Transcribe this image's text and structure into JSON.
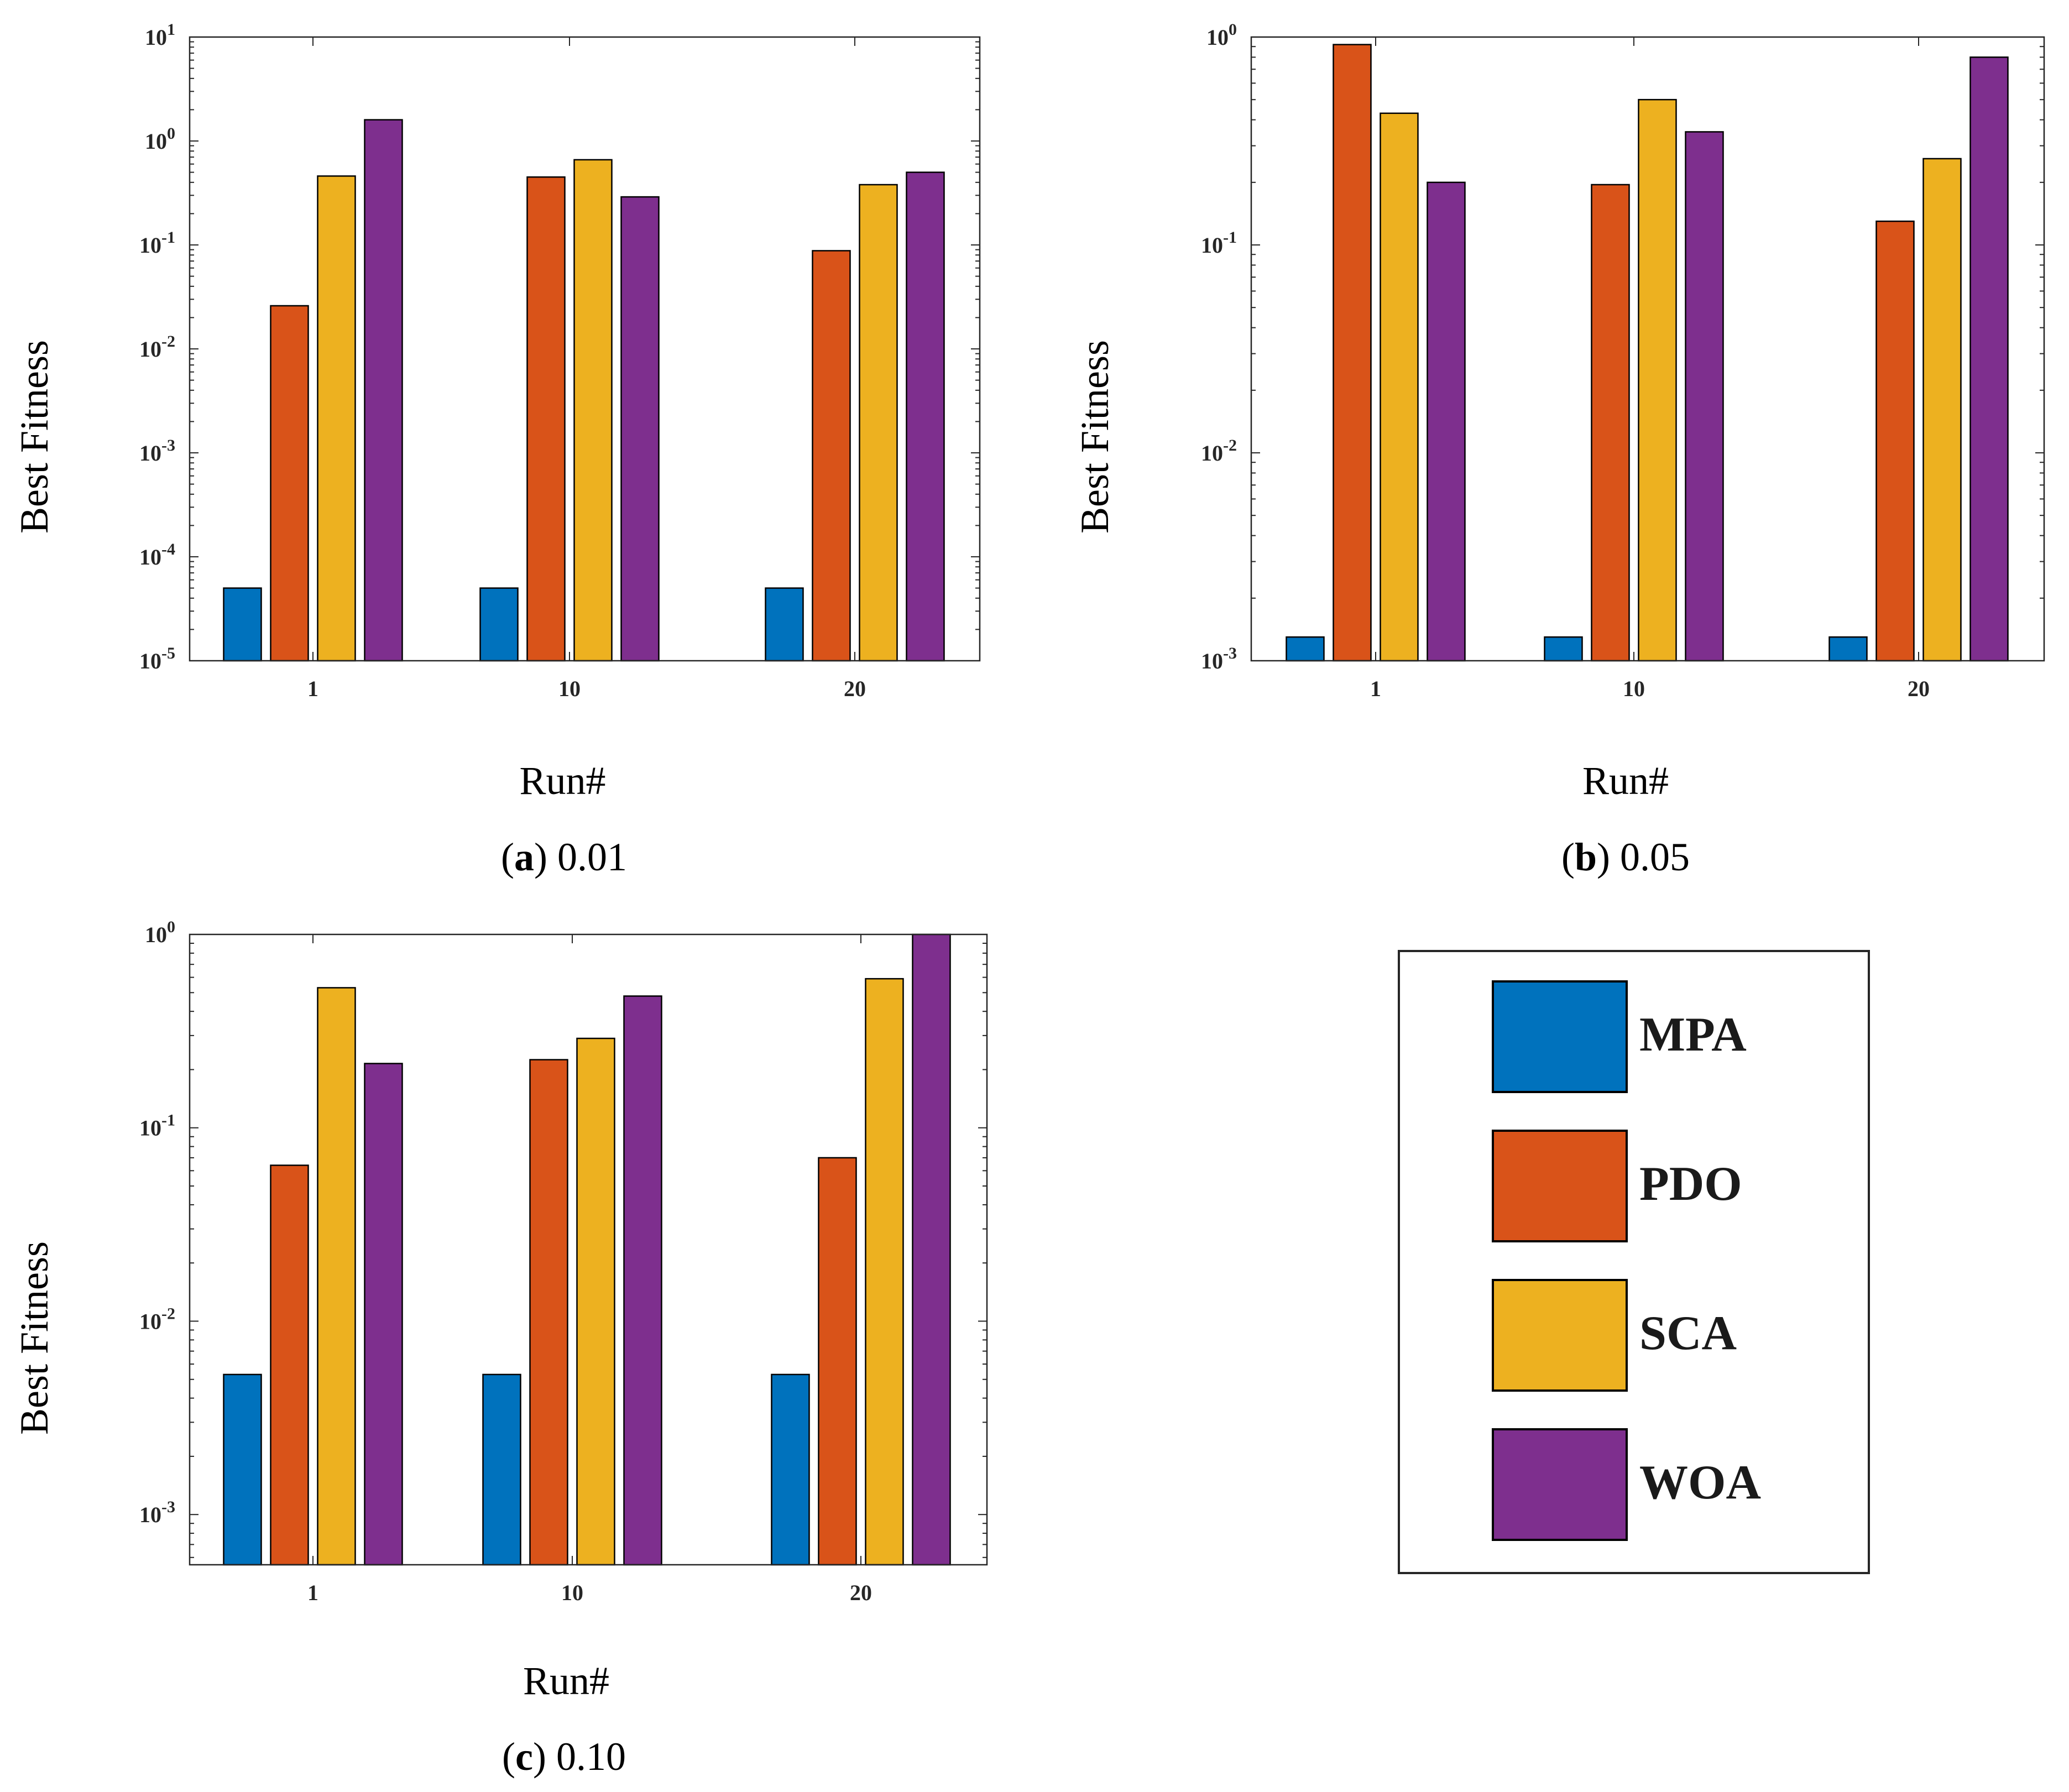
{
  "colors": {
    "MPA": "#0072BD",
    "PDO": "#D95319",
    "SCA": "#EDB120",
    "WOA": "#7E2F8E",
    "axis": "#262626",
    "frame": "#000000"
  },
  "legend": {
    "entries": [
      "MPA",
      "PDO",
      "SCA",
      "WOA"
    ]
  },
  "chart_data": [
    {
      "id": "a",
      "type": "bar",
      "yscale": "log",
      "ylim": [
        1e-05,
        10
      ],
      "yticks": [
        -5,
        -4,
        -3,
        -2,
        -1,
        0,
        1
      ],
      "categories": [
        "1",
        "10",
        "20"
      ],
      "xlabel": "Run#",
      "ylabel": "Best Fitness",
      "caption_letter": "a",
      "caption_value": "0.01",
      "series": [
        {
          "name": "MPA",
          "values": [
            5e-05,
            5e-05,
            5e-05
          ]
        },
        {
          "name": "PDO",
          "values": [
            0.026,
            0.45,
            0.088
          ]
        },
        {
          "name": "SCA",
          "values": [
            0.46,
            0.66,
            0.38
          ]
        },
        {
          "name": "WOA",
          "values": [
            1.6,
            0.29,
            0.5
          ]
        }
      ]
    },
    {
      "id": "b",
      "type": "bar",
      "yscale": "log",
      "ylim": [
        0.001,
        1
      ],
      "yticks": [
        -3,
        -2,
        -1,
        0
      ],
      "categories": [
        "1",
        "10",
        "20"
      ],
      "xlabel": "Run#",
      "ylabel": "Best Fitness",
      "caption_letter": "b",
      "caption_value": "0.05",
      "series": [
        {
          "name": "MPA",
          "values": [
            0.0013,
            0.0013,
            0.0013
          ]
        },
        {
          "name": "PDO",
          "values": [
            0.92,
            0.195,
            0.13
          ]
        },
        {
          "name": "SCA",
          "values": [
            0.43,
            0.5,
            0.26
          ]
        },
        {
          "name": "WOA",
          "values": [
            0.2,
            0.35,
            0.8
          ]
        }
      ]
    },
    {
      "id": "c",
      "type": "bar",
      "yscale": "log",
      "ylim": [
        0.00055,
        1
      ],
      "yticks": [
        -3,
        -2,
        -1,
        0
      ],
      "categories": [
        "1",
        "10",
        "20"
      ],
      "xlabel": "Run#",
      "ylabel": "Best Fitness",
      "caption_letter": "c",
      "caption_value": "0.10",
      "series": [
        {
          "name": "MPA",
          "values": [
            0.0053,
            0.0053,
            0.0053
          ]
        },
        {
          "name": "PDO",
          "values": [
            0.064,
            0.225,
            0.07
          ]
        },
        {
          "name": "SCA",
          "values": [
            0.53,
            0.29,
            0.59
          ]
        },
        {
          "name": "WOA",
          "values": [
            0.215,
            0.48,
            1.0
          ]
        }
      ]
    }
  ]
}
